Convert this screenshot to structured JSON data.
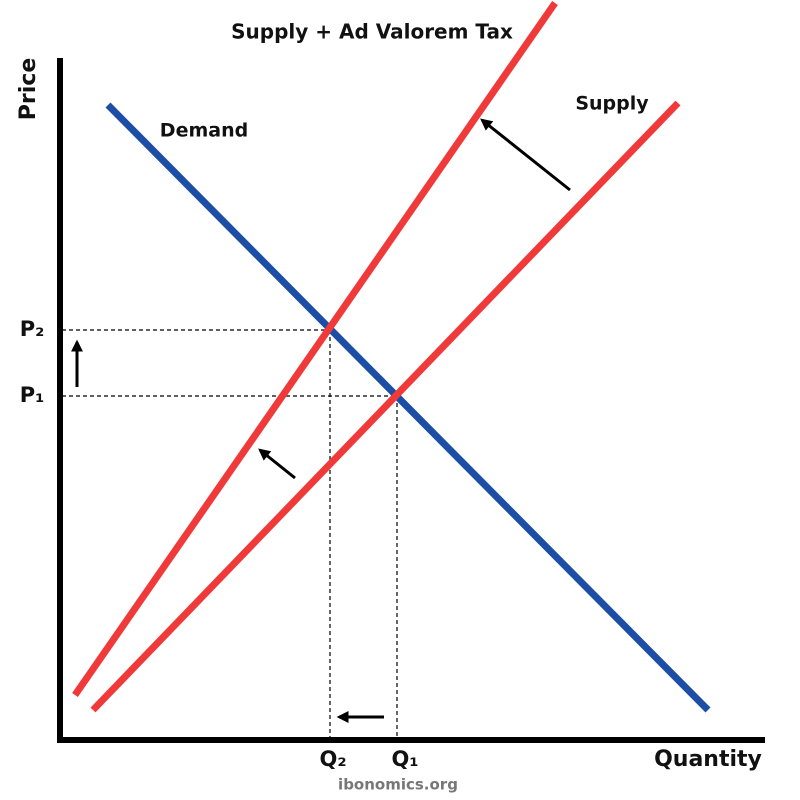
{
  "title": "Supply + Ad Valorem Tax",
  "curves": {
    "supply": "Supply",
    "demand": "Demand"
  },
  "axes": {
    "y": "Price",
    "x": "Quantity"
  },
  "prices": [
    "P₁",
    "P₂"
  ],
  "quantities": [
    "Q₁",
    "Q₂"
  ],
  "footer": "ibonomics.org"
}
